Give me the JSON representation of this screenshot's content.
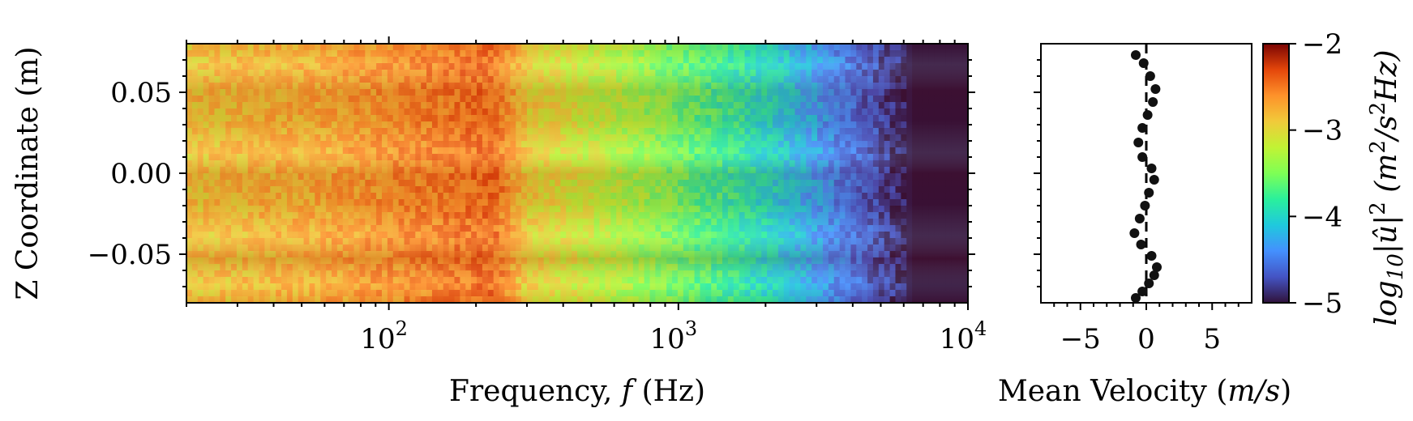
{
  "chart_data": [
    {
      "type": "heatmap",
      "xlabel": "Frequency, f (Hz)",
      "xlabel_parts": {
        "prefix": "Frequency, ",
        "var": "f",
        "suffix": " (Hz)"
      },
      "ylabel": "Z Coordinate (m)",
      "xscale": "log",
      "xlim": [
        20,
        10000
      ],
      "ylim": [
        -0.08,
        0.08
      ],
      "xticks": [
        {
          "value": 100,
          "base": "10",
          "exp": "2"
        },
        {
          "value": 1000,
          "base": "10",
          "exp": "3"
        },
        {
          "value": 10000,
          "base": "10",
          "exp": "4"
        }
      ],
      "yticks": [
        {
          "value": 0.05,
          "label": "0.05"
        },
        {
          "value": 0.0,
          "label": "0.00"
        },
        {
          "value": -0.05,
          "label": "−0.05"
        }
      ],
      "colormap": "turbo",
      "clim": [
        -5,
        -2
      ],
      "colorbar": {
        "label": "log10|û|² (m²/s²Hz)",
        "label_parts": {
          "log": "log",
          "sub": "10",
          "mid": "|û|",
          "sup": "2",
          "paren_open": " (m",
          "sup2": "2",
          "tail": "/s",
          "sup3": "2",
          "tail2": "Hz)"
        },
        "ticks": [
          {
            "value": -2,
            "label": "−2"
          },
          {
            "value": -3,
            "label": "−3"
          },
          {
            "value": -4,
            "label": "−4"
          },
          {
            "value": -5,
            "label": "−5"
          }
        ]
      },
      "spectrum_profile": {
        "description_free": true,
        "f_breaks_hz": [
          20,
          60,
          150,
          230,
          300,
          600,
          1000,
          2000,
          3000,
          5000,
          6500,
          10000
        ],
        "level_at_breaks": [
          -2.9,
          -2.75,
          -2.55,
          -2.45,
          -2.95,
          -3.25,
          -3.55,
          -3.95,
          -4.3,
          -4.75,
          -5.0,
          -5.0
        ]
      }
    },
    {
      "type": "scatter",
      "xlabel": "Mean Velocity (m/s)",
      "xlabel_parts": {
        "prefix": "Mean Velocity (",
        "var": "m/s",
        "suffix": ")"
      },
      "xlim": [
        -8,
        8
      ],
      "ylim": [
        -0.08,
        0.08
      ],
      "xticks": [
        {
          "value": -5,
          "label": "−5"
        },
        {
          "value": 0,
          "label": "0"
        },
        {
          "value": 5,
          "label": "5"
        }
      ],
      "reference_line": {
        "x": 0,
        "style": "dashed"
      },
      "series": [
        {
          "points": [
            {
              "x": -0.8,
              "y": 0.073
            },
            {
              "x": -0.2,
              "y": 0.068
            },
            {
              "x": 0.3,
              "y": 0.06
            },
            {
              "x": 0.7,
              "y": 0.052
            },
            {
              "x": 0.5,
              "y": 0.044
            },
            {
              "x": 0.1,
              "y": 0.036
            },
            {
              "x": -0.3,
              "y": 0.028
            },
            {
              "x": -0.6,
              "y": 0.019
            },
            {
              "x": -0.3,
              "y": 0.01
            },
            {
              "x": 0.4,
              "y": 0.003
            },
            {
              "x": 0.6,
              "y": -0.004
            },
            {
              "x": 0.2,
              "y": -0.012
            },
            {
              "x": -0.1,
              "y": -0.02
            },
            {
              "x": -0.5,
              "y": -0.028
            },
            {
              "x": -0.9,
              "y": -0.037
            },
            {
              "x": -0.4,
              "y": -0.044
            },
            {
              "x": 0.4,
              "y": -0.051
            },
            {
              "x": 0.8,
              "y": -0.058
            },
            {
              "x": 0.6,
              "y": -0.063
            },
            {
              "x": 0.2,
              "y": -0.068
            },
            {
              "x": -0.3,
              "y": -0.073
            },
            {
              "x": -0.8,
              "y": -0.077
            }
          ]
        }
      ]
    }
  ]
}
